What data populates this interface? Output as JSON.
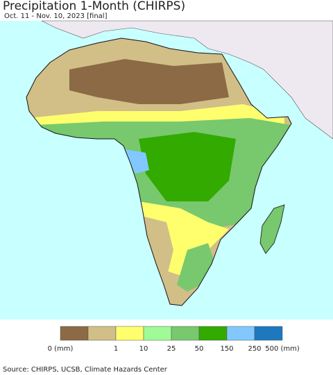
{
  "header": {
    "title": "Precipitation 1-Month (CHIRPS)",
    "subtitle": "Oct. 11 - Nov. 10, 2023 [final]"
  },
  "legend": {
    "colors": [
      "#8b6a45",
      "#d2be87",
      "#ffff6e",
      "#a0fa96",
      "#78c86e",
      "#32aa00",
      "#82c8ff",
      "#1e78be"
    ],
    "labels": [
      "0 (mm)",
      "1",
      "10",
      "25",
      "50",
      "150",
      "250",
      "500 (mm)"
    ]
  },
  "footer": {
    "source": "Source: CHIRPS, UCSB, Climate Hazards Center"
  }
}
